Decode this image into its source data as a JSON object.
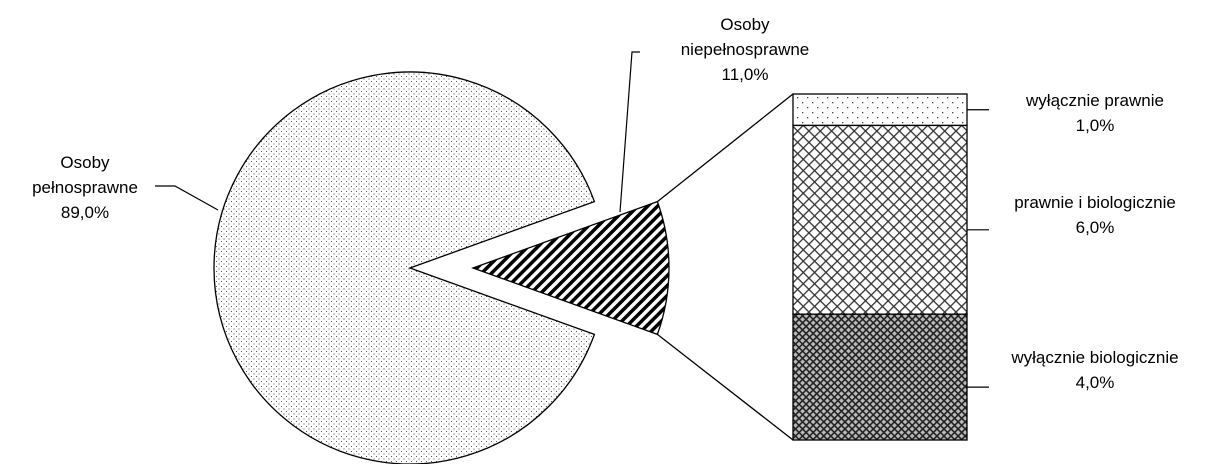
{
  "chart_data": {
    "type": "bar-of-pie",
    "categories": [
      "Osoby pełnosprawne",
      "Osoby niepełnosprawne"
    ],
    "values": [
      89,
      11
    ],
    "value_labels": [
      "89,0%",
      "11,0%"
    ],
    "breakdown": {
      "categories": [
        "wyłącznie prawnie",
        "prawnie i biologicznie",
        "wyłącznie biologicznie"
      ],
      "values": [
        1,
        6,
        4
      ],
      "value_labels": [
        "1,0%",
        "6,0%",
        "4,0%"
      ]
    }
  }
}
